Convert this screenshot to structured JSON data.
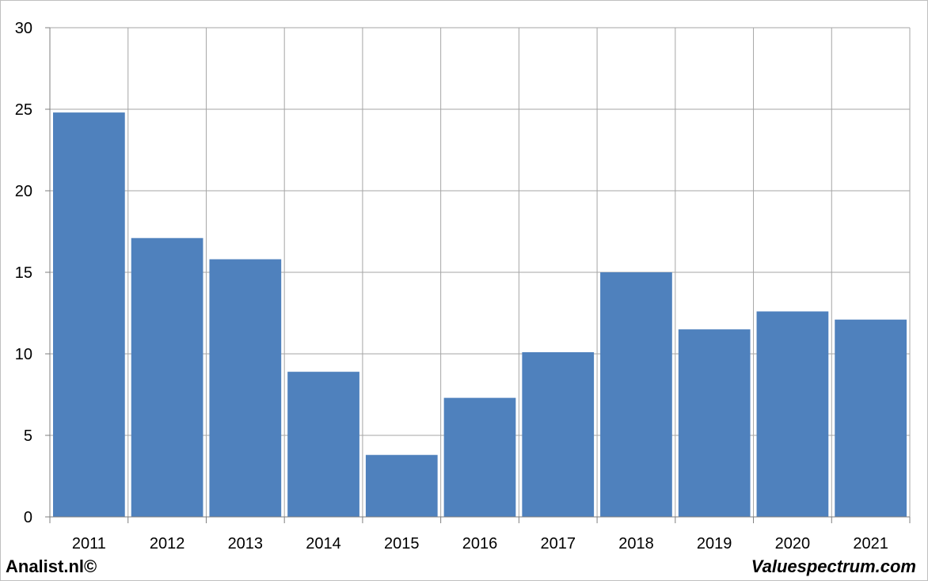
{
  "chart_data": {
    "type": "bar",
    "categories": [
      "2011",
      "2012",
      "2013",
      "2014",
      "2015",
      "2016",
      "2017",
      "2018",
      "2019",
      "2020",
      "2021"
    ],
    "values": [
      24.8,
      17.1,
      15.8,
      8.9,
      3.8,
      7.3,
      10.1,
      15.0,
      11.5,
      12.6,
      12.1
    ],
    "yticks": [
      "0",
      "5",
      "10",
      "15",
      "20",
      "25",
      "30"
    ],
    "ylim": [
      0,
      30
    ],
    "title": "",
    "xlabel": "",
    "ylabel": "",
    "grid": true,
    "bar_color": "#4f81bd",
    "grid_color": "#a6a6a6"
  },
  "footer": {
    "left": "Analist.nl©",
    "right": "Valuespectrum.com"
  }
}
